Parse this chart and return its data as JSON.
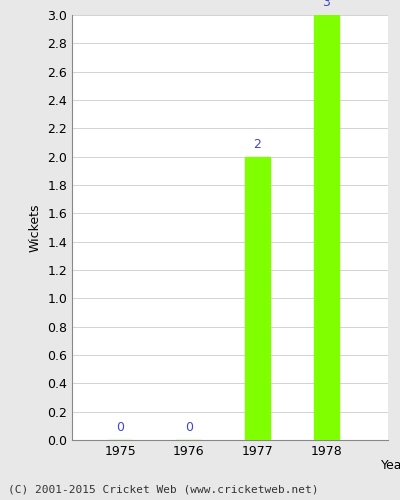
{
  "years": [
    1975,
    1976,
    1977,
    1978
  ],
  "wickets": [
    0,
    0,
    2,
    3
  ],
  "bar_color": "#7FFF00",
  "label_color": "#4444CC",
  "xlabel": "Year",
  "ylabel": "Wickets",
  "ylim": [
    0.0,
    3.0
  ],
  "background_color": "#E8E8E8",
  "plot_bg_color": "#FFFFFF",
  "footer": "(C) 2001-2015 Cricket Web (www.cricketweb.net)",
  "label_fontsize": 9,
  "axis_fontsize": 9,
  "footer_fontsize": 8,
  "bar_width": 0.4
}
